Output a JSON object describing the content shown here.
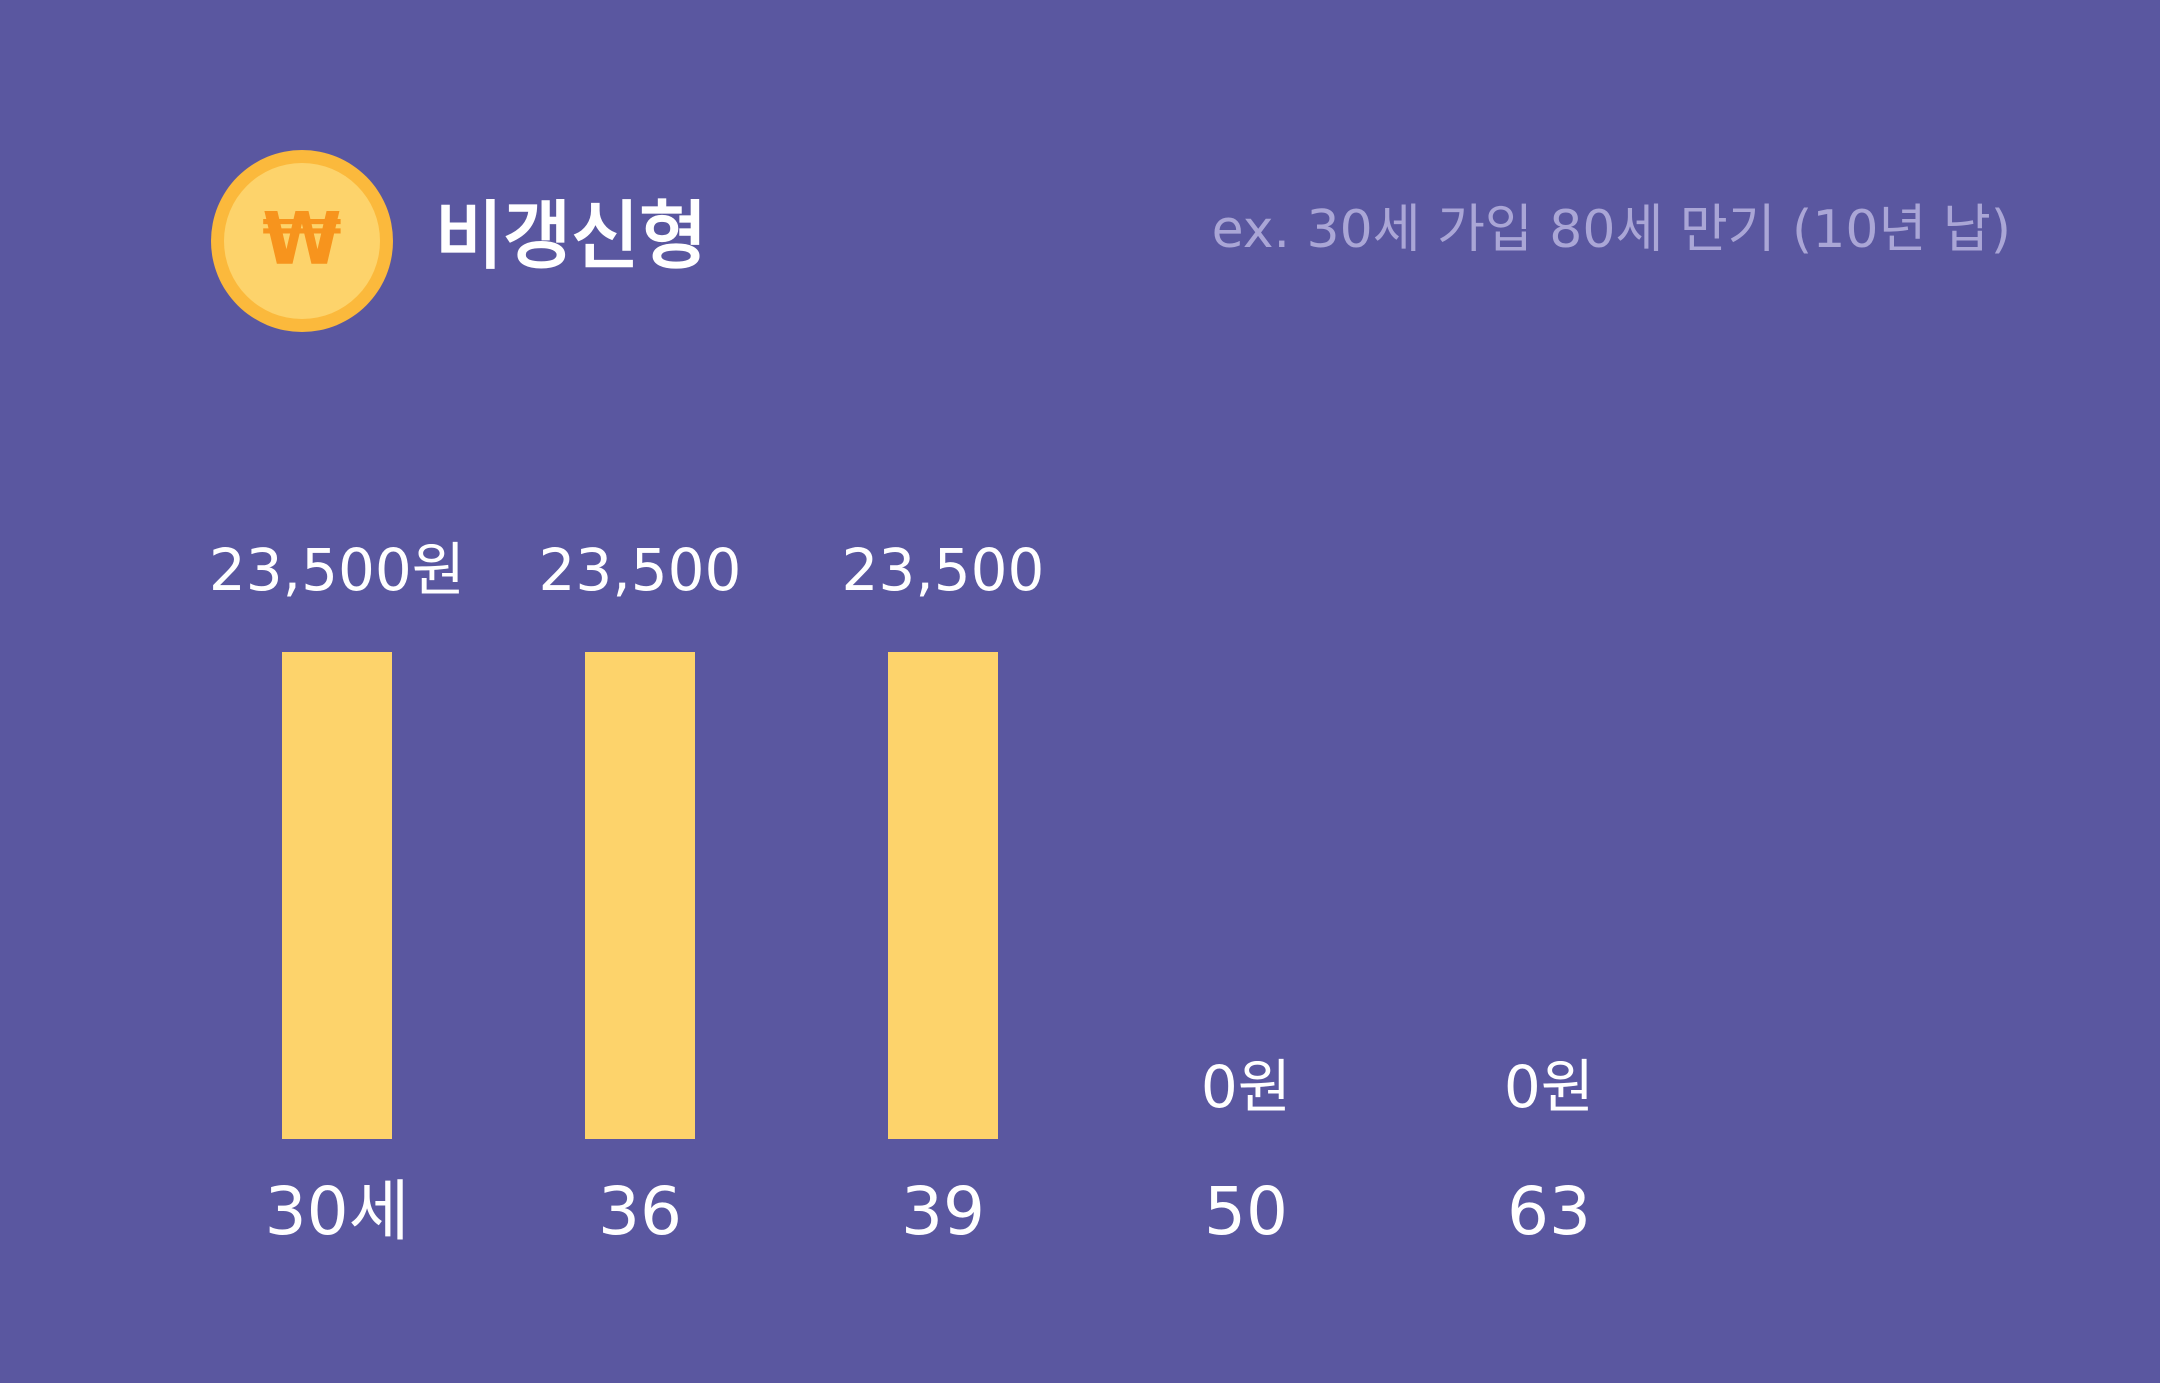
{
  "chart_data": {
    "type": "bar",
    "title": "비갱신형",
    "subtitle": "ex. 30세 가입 80세 만기 (10년 납)",
    "icon": "₩",
    "categories": [
      "30세",
      "36",
      "39",
      "50",
      "63"
    ],
    "values": [
      23500,
      23500,
      23500,
      0,
      0
    ],
    "value_labels": [
      "23,500원",
      "23,500",
      "23,500",
      "0원",
      "0원"
    ],
    "color": "#fdd36b"
  }
}
